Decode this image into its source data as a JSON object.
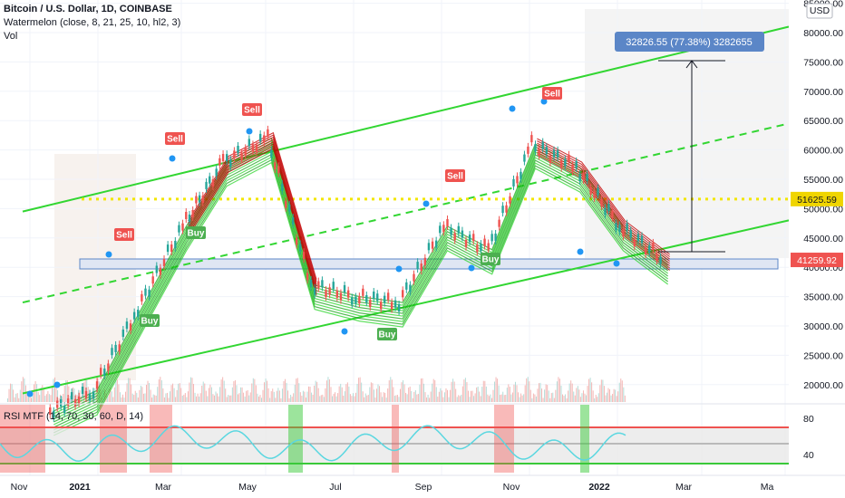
{
  "legend": {
    "title": "Bitcoin / U.S. Dollar, 1D, COINBASE",
    "indicator": "Watermelon (close, 8, 21, 25, 10, hl2, 3)",
    "volume": "Vol"
  },
  "rsi_legend": "RSI MTF (14, 70, 30, 60, D, 14)",
  "currency": "USD",
  "measure_label": "32826.55 (77.38%) 3282655",
  "price_tags": [
    {
      "value": "51625.59",
      "color": "#f0d500",
      "text_color": "#131722"
    },
    {
      "value": "41259.92",
      "color": "#ef5350",
      "text_color": "#ffffff"
    }
  ],
  "colors": {
    "up": "#26a69a",
    "down": "#ef5350",
    "ribbon_up": "#1fd31f",
    "ribbon_down": "#c20000",
    "channel": "#32d632",
    "dotted": "#f2e600",
    "rsi": "#5ad7e0",
    "rsi_band": "#3ac93a",
    "measure_box": "#5b86c7"
  },
  "signals": [
    {
      "text": "Sell",
      "kind": "sell"
    },
    {
      "text": "Sell",
      "kind": "sell"
    },
    {
      "text": "Sell",
      "kind": "sell"
    },
    {
      "text": "Sell",
      "kind": "sell"
    },
    {
      "text": "Sell",
      "kind": "sell"
    },
    {
      "text": "Buy",
      "kind": "buy"
    },
    {
      "text": "Buy",
      "kind": "buy"
    },
    {
      "text": "Buy",
      "kind": "buy"
    },
    {
      "text": "Buy",
      "kind": "buy"
    }
  ],
  "chart_data": {
    "type": "candlestick",
    "x_ticks": [
      "Nov",
      "2021",
      "Mar",
      "May",
      "Jul",
      "Sep",
      "Nov",
      "2022",
      "Mar",
      "Ma"
    ],
    "y_ticks": [
      "85000.00",
      "80000.00",
      "75000.00",
      "70000.00",
      "65000.00",
      "60000.00",
      "55000.00",
      "50000.00",
      "45000.00",
      "40000.00",
      "35000.00",
      "30000.00",
      "25000.00",
      "20000.00"
    ],
    "ylim": [
      15000,
      86000
    ],
    "series_close_approx": [
      {
        "x": "2020-11",
        "y": 15500
      },
      {
        "x": "2020-12",
        "y": 19000
      },
      {
        "x": "2021-01",
        "y": 33000
      },
      {
        "x": "2021-02",
        "y": 47000
      },
      {
        "x": "2021-03",
        "y": 58000
      },
      {
        "x": "2021-04",
        "y": 62000
      },
      {
        "x": "2021-05",
        "y": 37000
      },
      {
        "x": "2021-06",
        "y": 35000
      },
      {
        "x": "2021-07",
        "y": 34000
      },
      {
        "x": "2021-08",
        "y": 47000
      },
      {
        "x": "2021-09",
        "y": 43000
      },
      {
        "x": "2021-10",
        "y": 61000
      },
      {
        "x": "2021-11",
        "y": 57000
      },
      {
        "x": "2021-12",
        "y": 47000
      },
      {
        "x": "2022-01",
        "y": 41260
      }
    ],
    "rsi_panel": {
      "y_ticks": [
        "80",
        "40"
      ],
      "levels": [
        70,
        30,
        60
      ]
    },
    "price_lines": [
      {
        "label": "51625.59",
        "style": "dotted"
      },
      {
        "label": "41259.92",
        "style": "box"
      }
    ]
  }
}
